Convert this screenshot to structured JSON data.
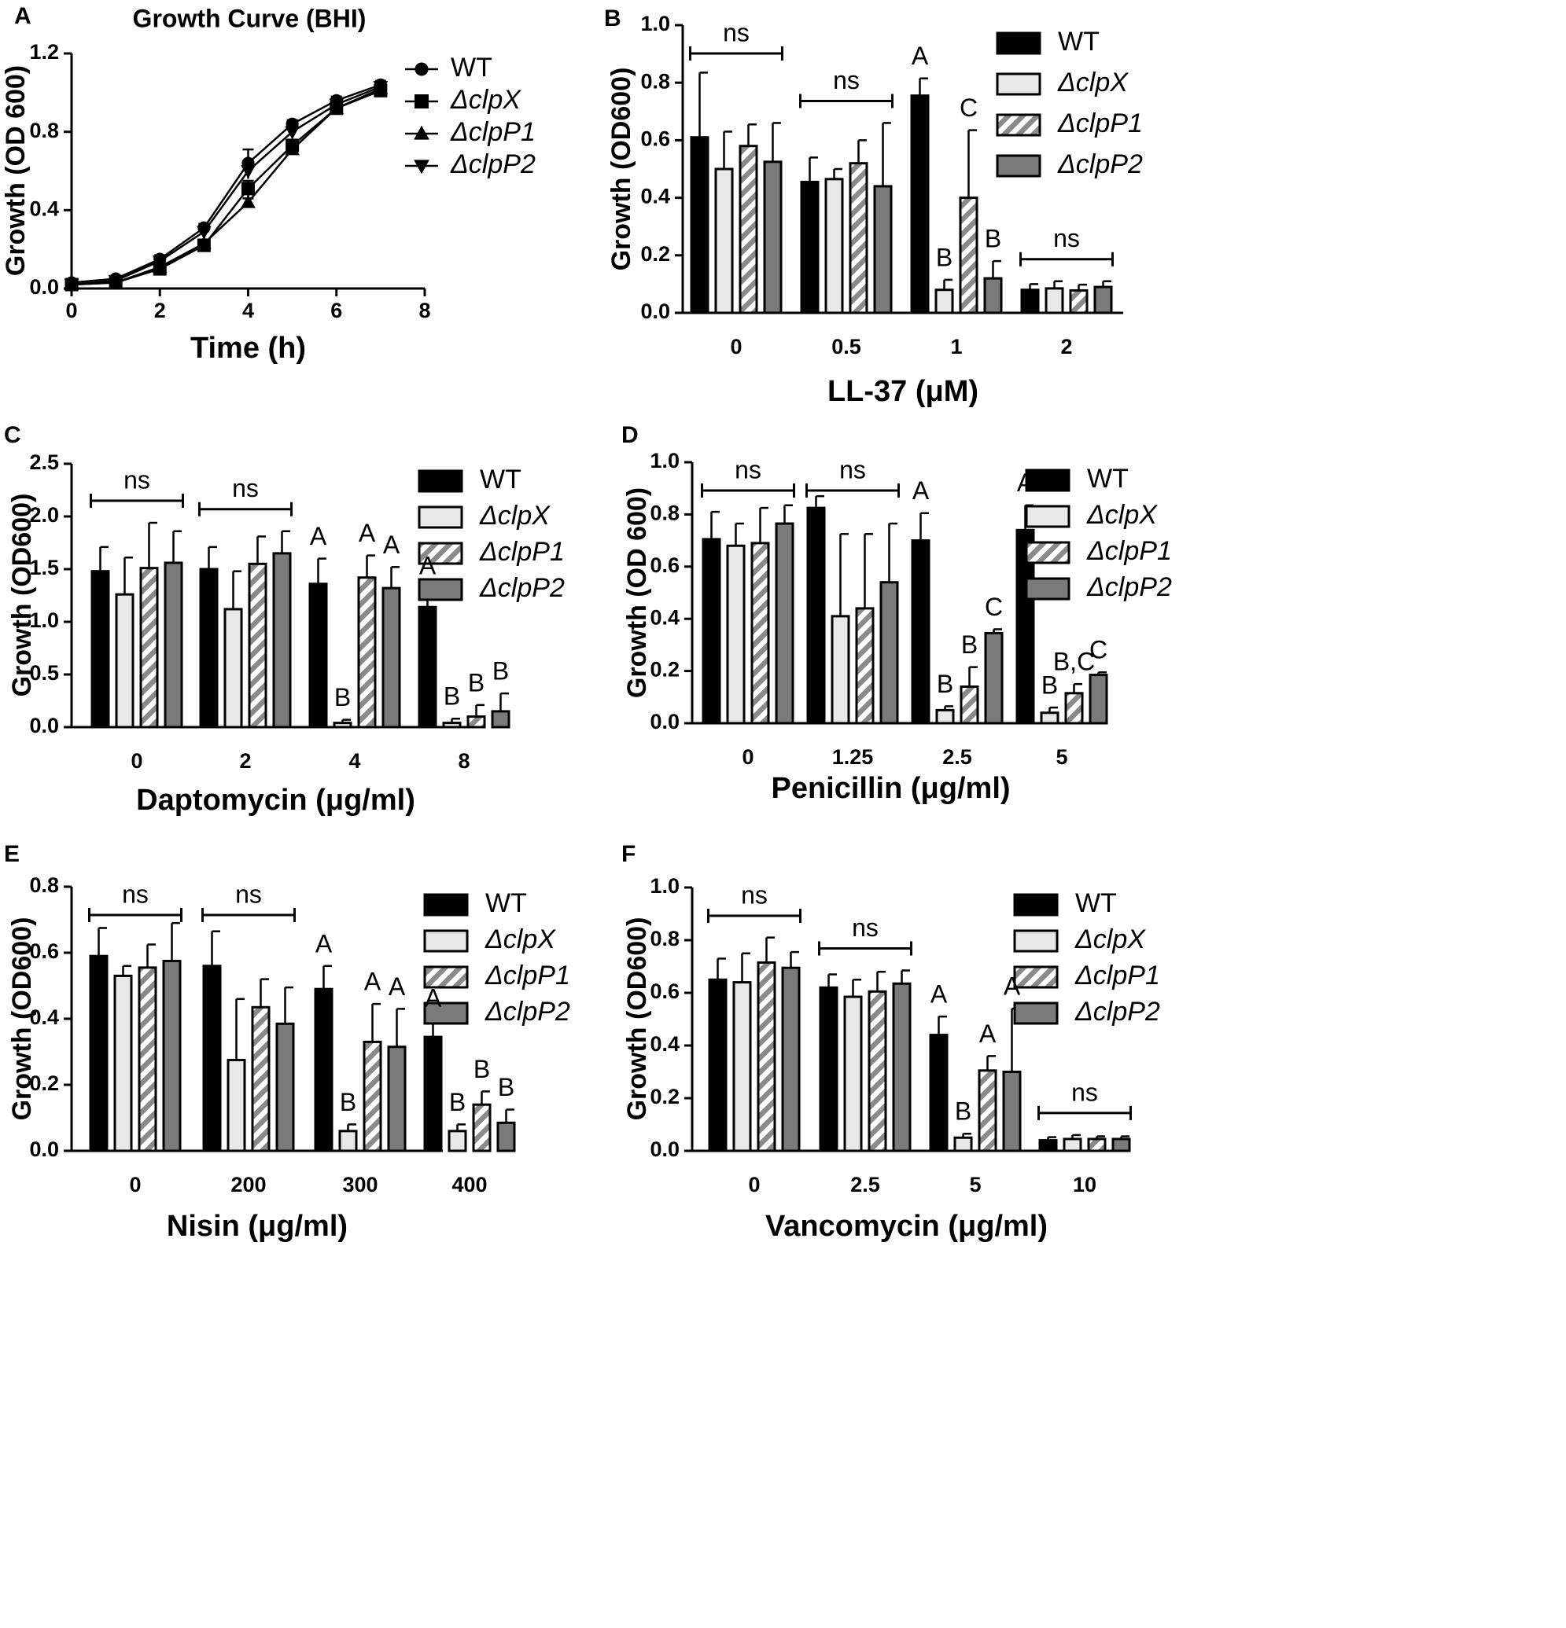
{
  "figure": {
    "colors": {
      "WT": "#000000",
      "clpX": "#e8e8e8",
      "clpP1": "#888888",
      "clpP2": "#7a7a7a",
      "ink": "#000000"
    }
  },
  "chart_data": [
    {
      "panel": "A",
      "type": "line",
      "title": "Growth Curve (BHI)",
      "xlabel": "Time (h)",
      "ylabel": "Growth (OD 600)",
      "xlim": [
        0,
        8
      ],
      "ylim": [
        0,
        1.2
      ],
      "xticks": [
        "0",
        "2",
        "4",
        "6",
        "8"
      ],
      "yticks": [
        "0.0",
        "0.4",
        "0.8",
        "1.2"
      ],
      "x": [
        0,
        1,
        2,
        3,
        4,
        5,
        6,
        7
      ],
      "series": [
        {
          "name": "WT",
          "marker": "circle",
          "values": [
            0.03,
            0.05,
            0.15,
            0.31,
            0.64,
            0.84,
            0.96,
            1.04
          ],
          "err": [
            0.01,
            0.01,
            0.02,
            0.02,
            0.07,
            0.02,
            0.02,
            0.02
          ]
        },
        {
          "name": "ΔclpX",
          "marker": "square",
          "values": [
            0.02,
            0.03,
            0.1,
            0.22,
            0.51,
            0.73,
            0.92,
            1.01
          ],
          "err": [
            0.01,
            0.01,
            0.02,
            0.02,
            0.04,
            0.03,
            0.02,
            0.02
          ]
        },
        {
          "name": "ΔclpP1",
          "marker": "triangle-up",
          "values": [
            0.02,
            0.03,
            0.11,
            0.23,
            0.44,
            0.71,
            0.92,
            1.02
          ],
          "err": [
            0.01,
            0.01,
            0.02,
            0.02,
            0.02,
            0.02,
            0.02,
            0.02
          ]
        },
        {
          "name": "ΔclpP2",
          "marker": "triangle-down",
          "values": [
            0.02,
            0.04,
            0.14,
            0.29,
            0.6,
            0.8,
            0.94,
            1.03
          ],
          "err": [
            0.01,
            0.01,
            0.02,
            0.02,
            0.04,
            0.02,
            0.02,
            0.02
          ]
        }
      ]
    },
    {
      "panel": "B",
      "type": "bar",
      "xlabel": "LL-37 (μM)",
      "ylabel": "Growth (OD600)",
      "ylim": [
        0,
        1.0
      ],
      "yticks": [
        "0.0",
        "0.2",
        "0.4",
        "0.6",
        "0.8",
        "1.0"
      ],
      "categories": [
        "0",
        "0.5",
        "1",
        "2"
      ],
      "series": [
        {
          "name": "WT",
          "values": [
            0.61,
            0.455,
            0.755,
            0.08
          ],
          "err": [
            0.225,
            0.085,
            0.06,
            0.02
          ]
        },
        {
          "name": "ΔclpX",
          "values": [
            0.5,
            0.465,
            0.08,
            0.085
          ],
          "err": [
            0.13,
            0.035,
            0.035,
            0.025
          ]
        },
        {
          "name": "ΔclpP1",
          "values": [
            0.58,
            0.52,
            0.4,
            0.078
          ],
          "err": [
            0.075,
            0.08,
            0.235,
            0.02
          ]
        },
        {
          "name": "ΔclpP2",
          "values": [
            0.525,
            0.44,
            0.12,
            0.09
          ],
          "err": [
            0.135,
            0.22,
            0.06,
            0.02
          ]
        }
      ],
      "annotations": [
        {
          "text": "ns",
          "type": "bracket",
          "category": 0
        },
        {
          "text": "ns",
          "type": "bracket",
          "category": 1
        },
        {
          "text": "ns",
          "type": "bracket",
          "category": 3
        },
        {
          "text": "A",
          "category": 2,
          "series": 0
        },
        {
          "text": "B",
          "category": 2,
          "series": 1
        },
        {
          "text": "C",
          "category": 2,
          "series": 2
        },
        {
          "text": "B",
          "category": 2,
          "series": 3
        }
      ]
    },
    {
      "panel": "C",
      "type": "bar",
      "xlabel": "Daptomycin (μg/ml)",
      "ylabel": "Growth (OD600)",
      "ylim": [
        0,
        2.5
      ],
      "yticks": [
        "0.0",
        "0.5",
        "1.0",
        "1.5",
        "2.0",
        "2.5"
      ],
      "categories": [
        "0",
        "2",
        "4",
        "8"
      ],
      "series": [
        {
          "name": "WT",
          "values": [
            1.48,
            1.5,
            1.36,
            1.14
          ],
          "err": [
            0.23,
            0.21,
            0.24,
            0.18
          ]
        },
        {
          "name": "ΔclpX",
          "values": [
            1.26,
            1.12,
            0.04,
            0.04
          ],
          "err": [
            0.35,
            0.36,
            0.03,
            0.04
          ]
        },
        {
          "name": "ΔclpP1",
          "values": [
            1.51,
            1.55,
            1.42,
            0.1
          ],
          "err": [
            0.43,
            0.26,
            0.21,
            0.11
          ]
        },
        {
          "name": "ΔclpP2",
          "values": [
            1.56,
            1.65,
            1.32,
            0.15
          ],
          "err": [
            0.3,
            0.21,
            0.2,
            0.17
          ]
        }
      ],
      "annotations": [
        {
          "text": "ns",
          "type": "bracket",
          "category": 0
        },
        {
          "text": "ns",
          "type": "bracket",
          "category": 1
        },
        {
          "text": "A",
          "category": 2,
          "series": 0
        },
        {
          "text": "B",
          "category": 2,
          "series": 1
        },
        {
          "text": "A",
          "category": 2,
          "series": 2
        },
        {
          "text": "A",
          "category": 2,
          "series": 3
        },
        {
          "text": "A",
          "category": 3,
          "series": 0
        },
        {
          "text": "B",
          "category": 3,
          "series": 1
        },
        {
          "text": "B",
          "category": 3,
          "series": 2
        },
        {
          "text": "B",
          "category": 3,
          "series": 3
        }
      ]
    },
    {
      "panel": "D",
      "type": "bar",
      "xlabel": "Penicillin (μg/ml)",
      "ylabel": "Growth (OD 600)",
      "ylim": [
        0,
        1.0
      ],
      "yticks": [
        "0.0",
        "0.2",
        "0.4",
        "0.6",
        "0.8",
        "1.0"
      ],
      "categories": [
        "0",
        "1.25",
        "2.5",
        "5"
      ],
      "series": [
        {
          "name": "WT",
          "values": [
            0.705,
            0.825,
            0.7,
            0.74
          ],
          "err": [
            0.105,
            0.045,
            0.105,
            0.095
          ]
        },
        {
          "name": "ΔclpX",
          "values": [
            0.68,
            0.41,
            0.05,
            0.04
          ],
          "err": [
            0.085,
            0.315,
            0.015,
            0.02
          ]
        },
        {
          "name": "ΔclpP1",
          "values": [
            0.69,
            0.44,
            0.14,
            0.115
          ],
          "err": [
            0.135,
            0.285,
            0.075,
            0.035
          ]
        },
        {
          "name": "ΔclpP2",
          "values": [
            0.765,
            0.54,
            0.345,
            0.185
          ],
          "err": [
            0.07,
            0.225,
            0.015,
            0.01
          ]
        }
      ],
      "annotations": [
        {
          "text": "ns",
          "type": "bracket",
          "category": 0
        },
        {
          "text": "ns",
          "type": "bracket",
          "category": 1
        },
        {
          "text": "A",
          "category": 2,
          "series": 0
        },
        {
          "text": "B",
          "category": 2,
          "series": 1
        },
        {
          "text": "B",
          "category": 2,
          "series": 2
        },
        {
          "text": "C",
          "category": 2,
          "series": 3
        },
        {
          "text": "A",
          "category": 3,
          "series": 0
        },
        {
          "text": "B",
          "category": 3,
          "series": 1
        },
        {
          "text": "B,C",
          "category": 3,
          "series": 2
        },
        {
          "text": "C",
          "category": 3,
          "series": 3
        }
      ]
    },
    {
      "panel": "E",
      "type": "bar",
      "xlabel": "Nisin (μg/ml)",
      "ylabel": "Growth (OD600)",
      "ylim": [
        0,
        0.8
      ],
      "yticks": [
        "0.0",
        "0.2",
        "0.4",
        "0.6",
        "0.8"
      ],
      "categories": [
        "0",
        "200",
        "300",
        "400"
      ],
      "series": [
        {
          "name": "WT",
          "values": [
            0.59,
            0.56,
            0.49,
            0.345
          ],
          "err": [
            0.085,
            0.105,
            0.07,
            0.05
          ]
        },
        {
          "name": "ΔclpX",
          "values": [
            0.53,
            0.275,
            0.06,
            0.06
          ],
          "err": [
            0.03,
            0.185,
            0.02,
            0.02
          ]
        },
        {
          "name": "ΔclpP1",
          "values": [
            0.555,
            0.435,
            0.33,
            0.14
          ],
          "err": [
            0.07,
            0.085,
            0.115,
            0.04
          ]
        },
        {
          "name": "ΔclpP2",
          "values": [
            0.575,
            0.385,
            0.315,
            0.085
          ],
          "err": [
            0.115,
            0.11,
            0.115,
            0.04
          ]
        }
      ],
      "annotations": [
        {
          "text": "ns",
          "type": "bracket",
          "category": 0
        },
        {
          "text": "ns",
          "type": "bracket",
          "category": 1
        },
        {
          "text": "A",
          "category": 2,
          "series": 0
        },
        {
          "text": "B",
          "category": 2,
          "series": 1
        },
        {
          "text": "A",
          "category": 2,
          "series": 2
        },
        {
          "text": "A",
          "category": 2,
          "series": 3
        },
        {
          "text": "A",
          "category": 3,
          "series": 0
        },
        {
          "text": "B",
          "category": 3,
          "series": 1
        },
        {
          "text": "B",
          "category": 3,
          "series": 2
        },
        {
          "text": "B",
          "category": 3,
          "series": 3
        }
      ]
    },
    {
      "panel": "F",
      "type": "bar",
      "xlabel": "Vancomycin (μg/ml)",
      "ylabel": "Growth (OD600)",
      "ylim": [
        0,
        1.0
      ],
      "yticks": [
        "0.0",
        "0.2",
        "0.4",
        "0.6",
        "0.8",
        "1.0"
      ],
      "categories": [
        "0",
        "2.5",
        "5",
        "10"
      ],
      "series": [
        {
          "name": "WT",
          "values": [
            0.65,
            0.62,
            0.44,
            0.04
          ],
          "err": [
            0.08,
            0.05,
            0.07,
            0.012
          ]
        },
        {
          "name": "ΔclpX",
          "values": [
            0.64,
            0.585,
            0.05,
            0.045
          ],
          "err": [
            0.11,
            0.065,
            0.015,
            0.015
          ]
        },
        {
          "name": "ΔclpP1",
          "values": [
            0.715,
            0.605,
            0.305,
            0.045
          ],
          "err": [
            0.095,
            0.075,
            0.055,
            0.01
          ]
        },
        {
          "name": "ΔclpP2",
          "values": [
            0.695,
            0.635,
            0.3,
            0.045
          ],
          "err": [
            0.06,
            0.05,
            0.24,
            0.01
          ]
        }
      ],
      "annotations": [
        {
          "text": "ns",
          "type": "bracket",
          "category": 0
        },
        {
          "text": "ns",
          "type": "bracket",
          "category": 1
        },
        {
          "text": "ns",
          "type": "bracket",
          "category": 3
        },
        {
          "text": "A",
          "category": 2,
          "series": 0
        },
        {
          "text": "B",
          "category": 2,
          "series": 1
        },
        {
          "text": "A",
          "category": 2,
          "series": 2
        },
        {
          "text": "A",
          "category": 2,
          "series": 3
        }
      ]
    }
  ]
}
